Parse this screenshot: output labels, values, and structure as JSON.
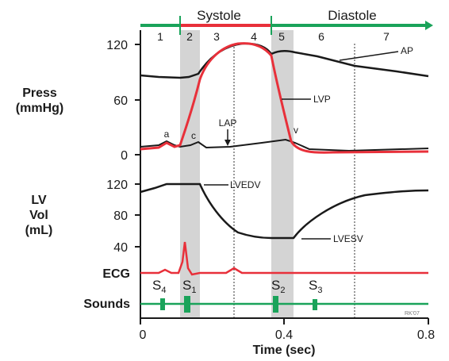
{
  "phase_header": {
    "systole": "Systole",
    "diastole": "Diastole",
    "phases": [
      "1",
      "2",
      "3",
      "4",
      "5",
      "6",
      "7"
    ]
  },
  "pressure_panel": {
    "label_line1": "Press",
    "label_line2": "(mmHg)",
    "ticks": [
      "120",
      "60",
      "0"
    ],
    "annotations": {
      "ap": "AP",
      "lvp": "LVP",
      "lap": "LAP",
      "a": "a",
      "c": "c",
      "v": "v"
    }
  },
  "volume_panel": {
    "label_line1": "LV",
    "label_line2": "Vol",
    "label_line3": "(mL)",
    "ticks": [
      "120",
      "80",
      "40"
    ],
    "annotations": {
      "lvedv": "LVEDV",
      "lvesv": "LVESV"
    }
  },
  "ecg_label": "ECG",
  "sounds": {
    "label": "Sounds",
    "s4": "S",
    "s4_sub": "4",
    "s1": "S",
    "s1_sub": "1",
    "s2": "S",
    "s2_sub": "2",
    "s3": "S",
    "s3_sub": "3"
  },
  "x_axis": {
    "label": "Time (sec)",
    "ticks": [
      "0",
      "0.4",
      "0.8"
    ]
  },
  "credit": "RK'07",
  "colors": {
    "systole_bar": "#e8303a",
    "diastole_bar": "#1aa35a",
    "lvp": "#e8303a",
    "ecg": "#e8303a",
    "sounds": "#1aa35a",
    "shade": "#d4d4d4",
    "trace": "#1a1a1a"
  }
}
